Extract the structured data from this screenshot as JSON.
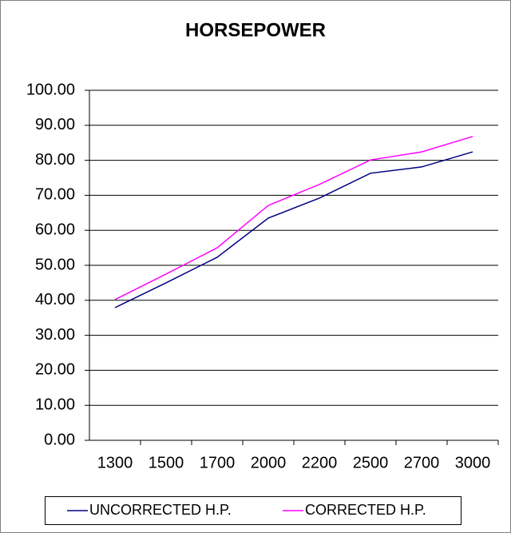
{
  "chart_data": {
    "type": "line",
    "title": "HORSEPOWER",
    "categories": [
      "1300",
      "1500",
      "1700",
      "2000",
      "2200",
      "2500",
      "2700",
      "3000"
    ],
    "series": [
      {
        "name": "UNCORRECTED H.P.",
        "color": "#000080",
        "values": [
          37.9,
          45.0,
          52.3,
          63.5,
          69.2,
          76.3,
          78.1,
          82.4
        ]
      },
      {
        "name": "CORRECTED H.P.",
        "color": "#ff00ff",
        "values": [
          40.2,
          47.5,
          55.0,
          67.1,
          73.1,
          80.1,
          82.4,
          86.8
        ]
      }
    ],
    "ylim": [
      0,
      100
    ],
    "yticks": [
      {
        "value": 0,
        "label": "0.00"
      },
      {
        "value": 10,
        "label": "10.00"
      },
      {
        "value": 20,
        "label": "20.00"
      },
      {
        "value": 30,
        "label": "30.00"
      },
      {
        "value": 40,
        "label": "40.00"
      },
      {
        "value": 50,
        "label": "50.00"
      },
      {
        "value": 60,
        "label": "60.00"
      },
      {
        "value": 70,
        "label": "70.00"
      },
      {
        "value": 80,
        "label": "80.00"
      },
      {
        "value": 90,
        "label": "90.00"
      },
      {
        "value": 100,
        "label": "100.00"
      }
    ],
    "grid": true,
    "legend": "bottom"
  }
}
